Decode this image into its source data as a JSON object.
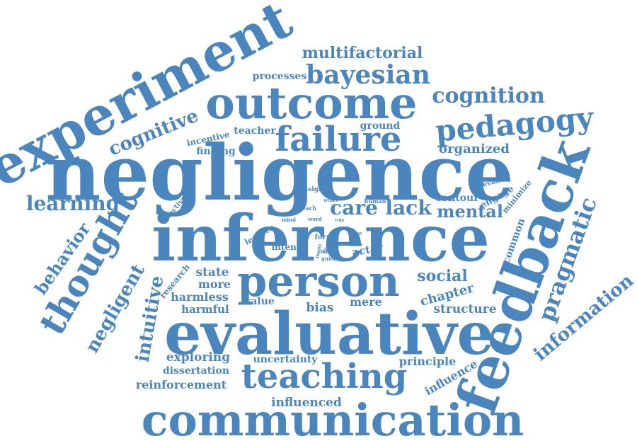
{
  "color": "#4a86bd",
  "words": [
    "negligence",
    "inference",
    "experiment",
    "outcome",
    "evaluative",
    "communication",
    "feedback",
    "person",
    "teaching",
    "bayesian",
    "pedagogy",
    "failure",
    "cognition",
    "thought",
    "multifactorial",
    "cognitive",
    "pragmatic",
    "information",
    "learning",
    "behavior",
    "negligent",
    "intuitive",
    "social",
    "care",
    "lack",
    "mental",
    "organized",
    "processes",
    "teacher",
    "ground",
    "incentive",
    "finding",
    "chapter",
    "structure",
    "principle",
    "influence",
    "influenced",
    "reinforcement",
    "dissertation",
    "exploring",
    "uncertainty",
    "bias",
    "mere",
    "state",
    "more",
    "harmless",
    "harmful",
    "value",
    "research",
    "common",
    "contour",
    "engage",
    "minimize",
    "relevant",
    "insight",
    "human",
    "other",
    "teach",
    "learner",
    "effective",
    "mind",
    "word",
    "role",
    "form",
    "view",
    "many",
    "infer",
    "guide",
    "intent",
    "actor",
    "case",
    "time"
  ]
}
